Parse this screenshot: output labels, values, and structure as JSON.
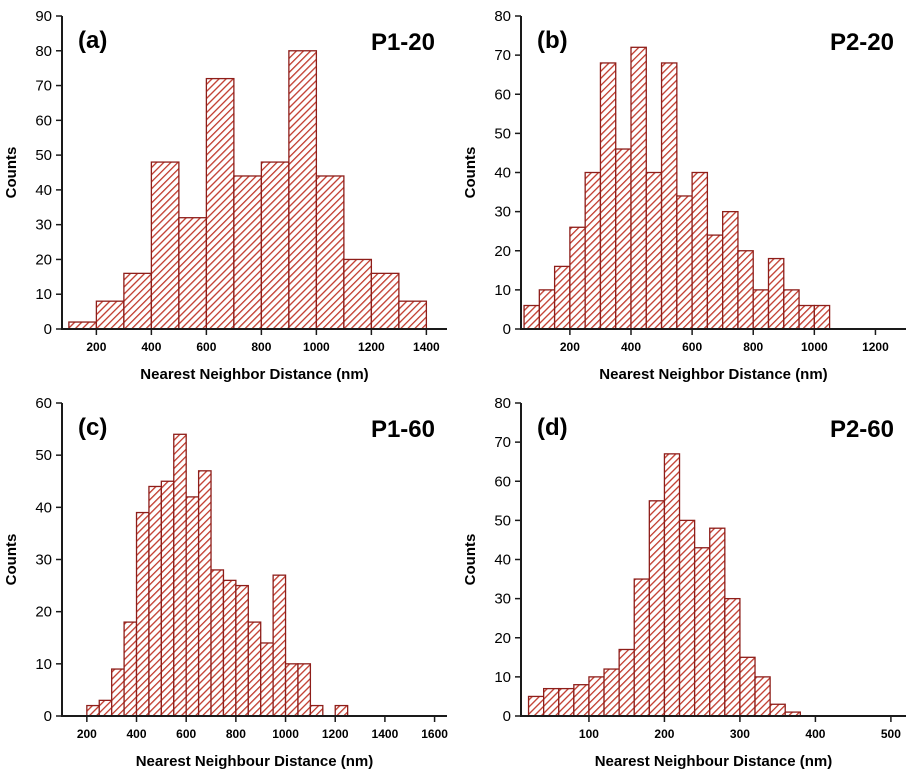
{
  "figure": {
    "background": "#ffffff",
    "colors": {
      "bar_hatch": "#c0392b",
      "bar_edge": "#8e1e1a",
      "axis": "#1a1a1a",
      "text": "#000000"
    }
  },
  "chart_data": [
    {
      "type": "bar",
      "panel_id": "a",
      "panel_tag": "(a)",
      "series_label": "P1-20",
      "ylabel": "Counts",
      "xlabel": "Nearest Neighbor Distance (nm)",
      "ylim": [
        0,
        90
      ],
      "ytick_step": 10,
      "xlim": [
        75,
        1475
      ],
      "xticks": [
        200,
        400,
        600,
        800,
        1000,
        1200,
        1400
      ],
      "grid": false,
      "legend": "none",
      "bin_width": 100,
      "bar_centers": [
        150,
        250,
        350,
        450,
        550,
        650,
        750,
        850,
        950,
        1050,
        1150,
        1250,
        1350
      ],
      "values": [
        2,
        8,
        16,
        48,
        32,
        72,
        44,
        48,
        80,
        44,
        20,
        16,
        8
      ]
    },
    {
      "type": "bar",
      "panel_id": "b",
      "panel_tag": "(b)",
      "series_label": "P2-20",
      "ylabel": "Counts",
      "xlabel": "Nearest Neighbor Distance (nm)",
      "ylim": [
        0,
        80
      ],
      "ytick_step": 10,
      "xlim": [
        40,
        1300
      ],
      "xticks": [
        200,
        400,
        600,
        800,
        1000,
        1200
      ],
      "grid": false,
      "legend": "none",
      "bin_width": 50,
      "bar_centers": [
        75,
        125,
        175,
        225,
        275,
        325,
        375,
        425,
        475,
        525,
        575,
        625,
        675,
        725,
        775,
        825,
        875,
        925,
        975,
        1025
      ],
      "values": [
        6,
        10,
        16,
        26,
        40,
        68,
        46,
        72,
        40,
        68,
        34,
        40,
        24,
        30,
        20,
        10,
        18,
        10,
        6,
        6
      ]
    },
    {
      "type": "bar",
      "panel_id": "c",
      "panel_tag": "(c)",
      "series_label": "P1-60",
      "ylabel": "Counts",
      "xlabel": "Nearest Neighbour Distance (nm)",
      "ylim": [
        0,
        60
      ],
      "ytick_step": 10,
      "xlim": [
        100,
        1650
      ],
      "xticks": [
        200,
        400,
        600,
        800,
        1000,
        1200,
        1400,
        1600
      ],
      "grid": false,
      "legend": "none",
      "bin_width": 50,
      "bar_centers": [
        225,
        275,
        325,
        375,
        425,
        475,
        525,
        575,
        625,
        675,
        725,
        775,
        825,
        875,
        925,
        975,
        1025,
        1075,
        1125,
        1175,
        1225
      ],
      "values": [
        2,
        3,
        9,
        18,
        39,
        44,
        45,
        54,
        42,
        47,
        28,
        26,
        25,
        18,
        14,
        27,
        10,
        10,
        2,
        0,
        2
      ]
    },
    {
      "type": "bar",
      "panel_id": "d",
      "panel_tag": "(d)",
      "series_label": "P2-60",
      "ylabel": "Counts",
      "xlabel": "Nearest Neighbour Distance (nm)",
      "ylim": [
        0,
        80
      ],
      "ytick_step": 10,
      "xlim": [
        10,
        520
      ],
      "xticks": [
        100,
        200,
        300,
        400,
        500
      ],
      "grid": false,
      "legend": "none",
      "bin_width": 20,
      "bar_centers": [
        30,
        50,
        70,
        90,
        110,
        130,
        150,
        170,
        190,
        210,
        230,
        250,
        270,
        290,
        310,
        330,
        350,
        370
      ],
      "values": [
        5,
        7,
        7,
        8,
        10,
        12,
        17,
        35,
        55,
        67,
        50,
        43,
        48,
        30,
        15,
        10,
        3,
        1
      ]
    }
  ]
}
